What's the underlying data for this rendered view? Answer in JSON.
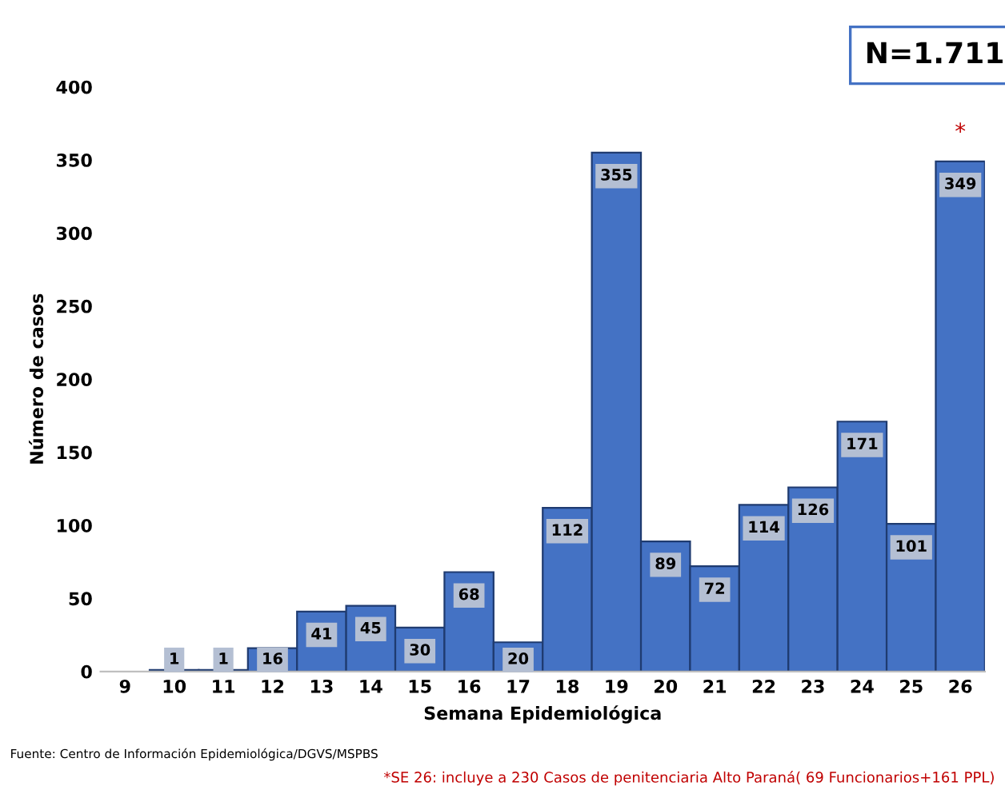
{
  "chart_data": {
    "type": "bar",
    "xlabel": "Semana Epidemiológica",
    "ylabel": "Número de casos",
    "categories": [
      "9",
      "10",
      "11",
      "12",
      "13",
      "14",
      "15",
      "16",
      "17",
      "18",
      "19",
      "20",
      "21",
      "22",
      "23",
      "24",
      "25",
      "26"
    ],
    "values": [
      0,
      1,
      1,
      16,
      41,
      45,
      30,
      68,
      20,
      112,
      355,
      89,
      72,
      114,
      126,
      171,
      101,
      349
    ],
    "value_labels": [
      null,
      "1",
      "1",
      "16",
      "41",
      "45",
      "30",
      "68",
      "20",
      "112",
      "355",
      "89",
      "72",
      "114",
      "126",
      "171",
      "101",
      "349"
    ],
    "color": "#4472c4",
    "ylim": [
      0,
      400
    ],
    "yticks": [
      0,
      50,
      100,
      150,
      200,
      250,
      300,
      350,
      400
    ],
    "grid": false,
    "legend": false,
    "annotations": [
      "N=1.711",
      {
        "text": "*",
        "x": "26",
        "y": 349
      },
      "Fuente: Centro de Información Epidemiológica/DGVS/MSPBS",
      "*SE 26: incluye a 230 Casos de penitenciaria Alto Paraná( 69 Funcionarios+161 PPL)"
    ]
  }
}
